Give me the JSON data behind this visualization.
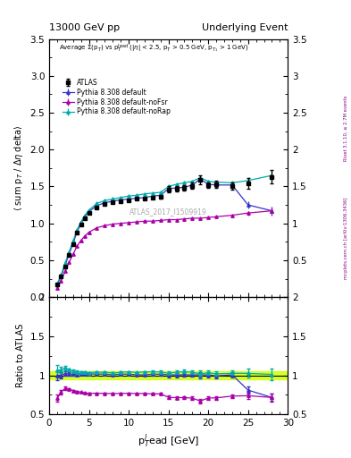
{
  "title_left": "13000 GeV pp",
  "title_right": "Underlying Event",
  "right_label": "mcplots.cern.ch [arXiv:1306.3436]",
  "rivet_label": "Rivet 3.1.10, ≥ 2.7M events",
  "annotation": "ATLAS_2017_I1509919",
  "ylim_main": [
    0,
    3.5
  ],
  "ylim_ratio": [
    0.5,
    2.0
  ],
  "xlim": [
    0,
    30
  ],
  "atlas_x": [
    1.0,
    1.5,
    2.0,
    2.5,
    3.0,
    3.5,
    4.0,
    4.5,
    5.0,
    6.0,
    7.0,
    8.0,
    9.0,
    10.0,
    11.0,
    12.0,
    13.0,
    14.0,
    15.0,
    16.0,
    17.0,
    18.0,
    19.0,
    20.0,
    21.0,
    23.0,
    25.0,
    28.0
  ],
  "atlas_y": [
    0.17,
    0.28,
    0.42,
    0.57,
    0.72,
    0.87,
    0.98,
    1.07,
    1.14,
    1.22,
    1.26,
    1.29,
    1.3,
    1.31,
    1.33,
    1.34,
    1.35,
    1.36,
    1.46,
    1.47,
    1.48,
    1.51,
    1.59,
    1.52,
    1.53,
    1.51,
    1.54,
    1.63
  ],
  "atlas_yerr": [
    0.01,
    0.01,
    0.01,
    0.01,
    0.01,
    0.01,
    0.01,
    0.01,
    0.01,
    0.01,
    0.01,
    0.01,
    0.01,
    0.01,
    0.01,
    0.01,
    0.02,
    0.02,
    0.04,
    0.04,
    0.04,
    0.04,
    0.06,
    0.04,
    0.05,
    0.05,
    0.07,
    0.09
  ],
  "py_default_x": [
    1.0,
    1.5,
    2.0,
    2.5,
    3.0,
    3.5,
    4.0,
    4.5,
    5.0,
    6.0,
    7.0,
    8.0,
    9.0,
    10.0,
    11.0,
    12.0,
    13.0,
    14.0,
    15.0,
    16.0,
    17.0,
    18.0,
    19.0,
    20.0,
    21.0,
    23.0,
    25.0,
    28.0
  ],
  "py_default_y": [
    0.17,
    0.28,
    0.43,
    0.58,
    0.73,
    0.88,
    1.0,
    1.09,
    1.16,
    1.24,
    1.28,
    1.3,
    1.32,
    1.33,
    1.34,
    1.35,
    1.37,
    1.38,
    1.47,
    1.48,
    1.49,
    1.52,
    1.6,
    1.53,
    1.52,
    1.52,
    1.25,
    1.17
  ],
  "py_default_yerr": [
    0.005,
    0.005,
    0.005,
    0.005,
    0.005,
    0.005,
    0.005,
    0.005,
    0.005,
    0.005,
    0.005,
    0.005,
    0.005,
    0.005,
    0.005,
    0.005,
    0.005,
    0.005,
    0.01,
    0.01,
    0.01,
    0.01,
    0.02,
    0.02,
    0.02,
    0.02,
    0.05,
    0.06
  ],
  "py_noFSR_x": [
    1.0,
    1.5,
    2.0,
    2.5,
    3.0,
    3.5,
    4.0,
    4.5,
    5.0,
    6.0,
    7.0,
    8.0,
    9.0,
    10.0,
    11.0,
    12.0,
    13.0,
    14.0,
    15.0,
    16.0,
    17.0,
    18.0,
    19.0,
    20.0,
    21.0,
    23.0,
    25.0,
    28.0
  ],
  "py_noFSR_y": [
    0.12,
    0.22,
    0.35,
    0.47,
    0.58,
    0.69,
    0.77,
    0.83,
    0.88,
    0.94,
    0.97,
    0.99,
    1.0,
    1.01,
    1.02,
    1.03,
    1.03,
    1.04,
    1.05,
    1.05,
    1.06,
    1.07,
    1.07,
    1.08,
    1.09,
    1.11,
    1.14,
    1.17
  ],
  "py_noFSR_yerr": [
    0.003,
    0.003,
    0.003,
    0.003,
    0.003,
    0.003,
    0.003,
    0.003,
    0.003,
    0.003,
    0.003,
    0.003,
    0.003,
    0.003,
    0.003,
    0.003,
    0.003,
    0.003,
    0.005,
    0.005,
    0.005,
    0.005,
    0.01,
    0.01,
    0.01,
    0.01,
    0.03,
    0.04
  ],
  "py_noRap_x": [
    1.0,
    1.5,
    2.0,
    2.5,
    3.0,
    3.5,
    4.0,
    4.5,
    5.0,
    6.0,
    7.0,
    8.0,
    9.0,
    10.0,
    11.0,
    12.0,
    13.0,
    14.0,
    15.0,
    16.0,
    17.0,
    18.0,
    19.0,
    20.0,
    21.0,
    23.0,
    25.0,
    28.0
  ],
  "py_noRap_y": [
    0.18,
    0.3,
    0.46,
    0.61,
    0.76,
    0.91,
    1.02,
    1.11,
    1.18,
    1.27,
    1.31,
    1.33,
    1.35,
    1.37,
    1.38,
    1.4,
    1.41,
    1.42,
    1.5,
    1.53,
    1.55,
    1.57,
    1.62,
    1.57,
    1.56,
    1.55,
    1.58,
    1.65
  ],
  "py_noRap_yerr": [
    0.005,
    0.005,
    0.005,
    0.005,
    0.005,
    0.005,
    0.005,
    0.005,
    0.005,
    0.005,
    0.005,
    0.005,
    0.005,
    0.005,
    0.005,
    0.005,
    0.005,
    0.005,
    0.01,
    0.01,
    0.01,
    0.01,
    0.02,
    0.02,
    0.02,
    0.02,
    0.05,
    0.07
  ],
  "color_atlas": "#000000",
  "color_default": "#3333cc",
  "color_noFSR": "#aa00aa",
  "color_noRap": "#00aaaa",
  "color_band": "#ccff00",
  "yticks_main": [
    0.0,
    0.5,
    1.0,
    1.5,
    2.0,
    2.5,
    3.0,
    3.5
  ],
  "yticks_ratio": [
    0.5,
    1.0,
    1.5,
    2.0
  ],
  "xticks": [
    0,
    5,
    10,
    15,
    20,
    25,
    30
  ]
}
